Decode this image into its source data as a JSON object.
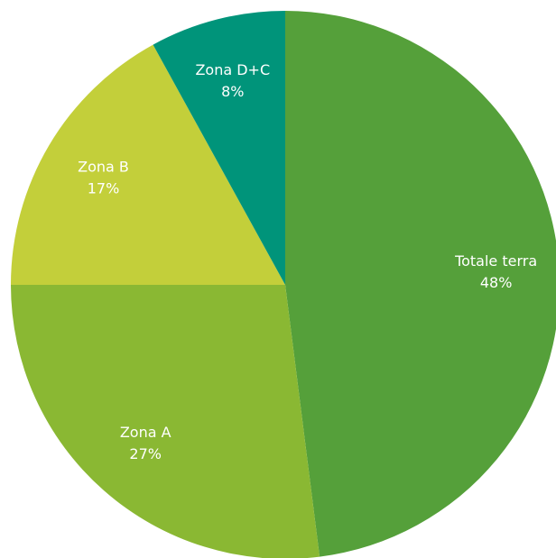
{
  "chart_data": {
    "type": "pie",
    "categories": [
      "Totale terra",
      "Zona A",
      "Zona B",
      "Zona D+C"
    ],
    "values": [
      48,
      27,
      17,
      8
    ],
    "value_labels": [
      "48%",
      "27%",
      "17%",
      "8%"
    ],
    "colors": [
      "#55a03a",
      "#8ab833",
      "#c3cf3a",
      "#00947a"
    ]
  }
}
